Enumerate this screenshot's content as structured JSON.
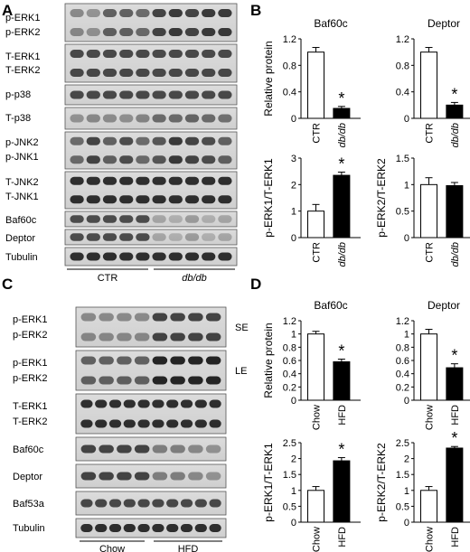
{
  "panels": {
    "A": {
      "letter": "A",
      "row_labels": [
        "p-ERK1",
        "p-ERK2",
        "T-ERK1",
        "T-ERK2",
        "p-p38",
        "T-p38",
        "p-JNK2",
        "p-JNK1",
        "T-JNK2",
        "T-JNK1",
        "Baf60c",
        "Deptor",
        "Tubulin"
      ],
      "group_labels": [
        "CTR",
        "db/db"
      ]
    },
    "C": {
      "letter": "C",
      "row_labels": [
        "p-ERK1",
        "p-ERK2",
        "p-ERK1",
        "p-ERK2",
        "T-ERK1",
        "T-ERK2",
        "Baf60c",
        "Deptor",
        "Baf53a",
        "Tubulin"
      ],
      "exposure_labels": [
        "SE",
        "LE"
      ],
      "group_labels": [
        "Chow",
        "HFD"
      ]
    },
    "B": {
      "letter": "B"
    },
    "D": {
      "letter": "D"
    }
  },
  "chart_data": [
    {
      "id": "B1",
      "panel": "B",
      "type": "bar",
      "title": "Baf60c",
      "ylabel": "Relative protein",
      "categories": [
        "CTR",
        "db/db"
      ],
      "values": [
        1.0,
        0.15
      ],
      "errors": [
        0.07,
        0.03
      ],
      "colors": [
        "#ffffff",
        "#000000"
      ],
      "significant": [
        false,
        true
      ],
      "sig_symbol": "*",
      "ylim": [
        0,
        1.2
      ],
      "ticks": [
        "0",
        "0.4",
        "0.8",
        "1.2"
      ]
    },
    {
      "id": "B2",
      "panel": "B",
      "type": "bar",
      "title": "Deptor",
      "ylabel": "",
      "categories": [
        "CTR",
        "db/db"
      ],
      "values": [
        1.0,
        0.2
      ],
      "errors": [
        0.07,
        0.04
      ],
      "colors": [
        "#ffffff",
        "#000000"
      ],
      "significant": [
        false,
        true
      ],
      "sig_symbol": "*",
      "ylim": [
        0,
        1.2
      ],
      "ticks": [
        "0",
        "0.4",
        "0.8",
        "1.2"
      ]
    },
    {
      "id": "B3",
      "panel": "B",
      "type": "bar",
      "title": "",
      "ylabel": "p-ERK1/T-ERK1",
      "categories": [
        "CTR",
        "db/db"
      ],
      "values": [
        1.0,
        2.35
      ],
      "errors": [
        0.25,
        0.12
      ],
      "colors": [
        "#ffffff",
        "#000000"
      ],
      "significant": [
        false,
        true
      ],
      "sig_symbol": "*",
      "ylim": [
        0,
        3
      ],
      "ticks": [
        "0",
        "1",
        "2",
        "3"
      ]
    },
    {
      "id": "B4",
      "panel": "B",
      "type": "bar",
      "title": "",
      "ylabel": "p-ERK2/T-ERK2",
      "categories": [
        "CTR",
        "db/db"
      ],
      "values": [
        1.0,
        0.98
      ],
      "errors": [
        0.13,
        0.06
      ],
      "colors": [
        "#ffffff",
        "#000000"
      ],
      "significant": [
        false,
        false
      ],
      "sig_symbol": "*",
      "ylim": [
        0,
        1.5
      ],
      "ticks": [
        "0",
        "0.5",
        "1",
        "1.5"
      ]
    },
    {
      "id": "D1",
      "panel": "D",
      "type": "bar",
      "title": "Baf60c",
      "ylabel": "Relative protein",
      "categories": [
        "Chow",
        "HFD"
      ],
      "values": [
        1.0,
        0.58
      ],
      "errors": [
        0.04,
        0.04
      ],
      "colors": [
        "#ffffff",
        "#000000"
      ],
      "significant": [
        false,
        true
      ],
      "sig_symbol": "*",
      "ylim": [
        0,
        1.2
      ],
      "ticks": [
        "0",
        "0.2",
        "0.4",
        "0.6",
        "0.8",
        "1",
        "1.2"
      ]
    },
    {
      "id": "D2",
      "panel": "D",
      "type": "bar",
      "title": "Deptor",
      "ylabel": "",
      "categories": [
        "Chow",
        "HFD"
      ],
      "values": [
        1.0,
        0.49
      ],
      "errors": [
        0.07,
        0.06
      ],
      "colors": [
        "#ffffff",
        "#000000"
      ],
      "significant": [
        false,
        true
      ],
      "sig_symbol": "*",
      "ylim": [
        0,
        1.2
      ],
      "ticks": [
        "0",
        "0.2",
        "0.4",
        "0.6",
        "0.8",
        "1",
        "1.2"
      ]
    },
    {
      "id": "D3",
      "panel": "D",
      "type": "bar",
      "title": "",
      "ylabel": "p-ERK1/T-ERK1",
      "categories": [
        "Chow",
        "HFD"
      ],
      "values": [
        1.0,
        1.93
      ],
      "errors": [
        0.12,
        0.1
      ],
      "colors": [
        "#ffffff",
        "#000000"
      ],
      "significant": [
        false,
        true
      ],
      "sig_symbol": "*",
      "ylim": [
        0,
        2.5
      ],
      "ticks": [
        "0",
        "0.5",
        "1",
        "1.5",
        "2",
        "2.5"
      ]
    },
    {
      "id": "D4",
      "panel": "D",
      "type": "bar",
      "title": "",
      "ylabel": "p-ERK2/T-ERK2",
      "categories": [
        "Chow",
        "HFD"
      ],
      "values": [
        1.0,
        2.33
      ],
      "errors": [
        0.12,
        0.05
      ],
      "colors": [
        "#ffffff",
        "#000000"
      ],
      "significant": [
        false,
        true
      ],
      "sig_symbol": "*",
      "ylim": [
        0,
        2.5
      ],
      "ticks": [
        "0",
        "0.5",
        "1",
        "1.5",
        "2",
        "2.5"
      ]
    }
  ]
}
